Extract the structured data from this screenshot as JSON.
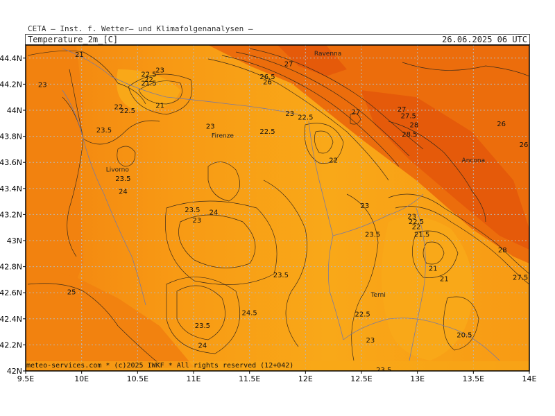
{
  "header": {
    "title": "CETA — Inst. f. Wetter— und Klimafolgenanalysen —",
    "parameter": "Temperature_2m_[C]",
    "datetime": "26.06.2025 06 UTC"
  },
  "footer": "meteo-services.com * (c)2025 IWKF * All rights reserved (12+042)",
  "colors": {
    "lightest": "#f9a818",
    "light": "#f89a14",
    "mid": "#f2820f",
    "dark": "#ec6d0c",
    "darkest": "#e55a0a",
    "contour": "#3a2a1a",
    "border": "#7a7aa0",
    "grid": "#b8b8b8"
  },
  "map": {
    "lon_range": [
      9.5,
      14.0
    ],
    "lat_range": [
      42.0,
      44.5
    ],
    "x_ticks": [
      "9.5E",
      "10E",
      "10.5E",
      "11E",
      "11.5E",
      "12E",
      "12.5E",
      "13E",
      "13.5E",
      "14E"
    ],
    "y_ticks": [
      "44.4N",
      "44.2N",
      "44N",
      "43.8N",
      "43.6N",
      "43.4N",
      "43.2N",
      "43N",
      "42.8N",
      "42.6N",
      "42.4N",
      "42.2N",
      "42N"
    ],
    "cities": [
      {
        "name": "Ravenna",
        "lon": 12.2,
        "lat": 44.42
      },
      {
        "name": "Firenze",
        "lon": 11.26,
        "lat": 43.79
      },
      {
        "name": "Livorno",
        "lon": 10.32,
        "lat": 43.53
      },
      {
        "name": "Ancona",
        "lon": 13.5,
        "lat": 43.6
      },
      {
        "name": "Terni",
        "lon": 12.65,
        "lat": 42.57
      }
    ],
    "contour_labels": [
      {
        "t": "21",
        "lon": 9.98,
        "lat": 44.43
      },
      {
        "t": "23",
        "lon": 9.65,
        "lat": 44.2
      },
      {
        "t": "23",
        "lon": 10.7,
        "lat": 44.31
      },
      {
        "t": "22.5",
        "lon": 10.6,
        "lat": 44.28
      },
      {
        "t": "22",
        "lon": 10.6,
        "lat": 44.24
      },
      {
        "t": "21.5",
        "lon": 10.6,
        "lat": 44.21
      },
      {
        "t": "21",
        "lon": 10.7,
        "lat": 44.04
      },
      {
        "t": "22",
        "lon": 10.33,
        "lat": 44.03
      },
      {
        "t": "22.5",
        "lon": 10.41,
        "lat": 44.0
      },
      {
        "t": "23.5",
        "lon": 10.2,
        "lat": 43.85
      },
      {
        "t": "23",
        "lon": 11.15,
        "lat": 43.88
      },
      {
        "t": "27",
        "lon": 11.85,
        "lat": 44.36
      },
      {
        "t": "26.5",
        "lon": 11.66,
        "lat": 44.26
      },
      {
        "t": "26",
        "lon": 11.66,
        "lat": 44.22
      },
      {
        "t": "23",
        "lon": 11.86,
        "lat": 43.98
      },
      {
        "t": "22.5",
        "lon": 12.0,
        "lat": 43.95
      },
      {
        "t": "22.5",
        "lon": 11.66,
        "lat": 43.84
      },
      {
        "t": "27",
        "lon": 12.45,
        "lat": 43.99
      },
      {
        "t": "27",
        "lon": 12.86,
        "lat": 44.01
      },
      {
        "t": "27.5",
        "lon": 12.92,
        "lat": 43.96
      },
      {
        "t": "28",
        "lon": 12.97,
        "lat": 43.89
      },
      {
        "t": "28.5",
        "lon": 12.93,
        "lat": 43.82
      },
      {
        "t": "26",
        "lon": 13.75,
        "lat": 43.9
      },
      {
        "t": "26.5",
        "lon": 13.98,
        "lat": 43.74
      },
      {
        "t": "22",
        "lon": 12.25,
        "lat": 43.62
      },
      {
        "t": "23.5",
        "lon": 10.37,
        "lat": 43.48
      },
      {
        "t": "24",
        "lon": 10.37,
        "lat": 43.38
      },
      {
        "t": "23.5",
        "lon": 10.99,
        "lat": 43.24
      },
      {
        "t": "24",
        "lon": 11.18,
        "lat": 43.22
      },
      {
        "t": "23",
        "lon": 11.03,
        "lat": 43.16
      },
      {
        "t": "23",
        "lon": 12.53,
        "lat": 43.27
      },
      {
        "t": "23.5",
        "lon": 12.6,
        "lat": 43.05
      },
      {
        "t": "23",
        "lon": 12.95,
        "lat": 43.19
      },
      {
        "t": "22.5",
        "lon": 12.99,
        "lat": 43.15
      },
      {
        "t": "22",
        "lon": 12.99,
        "lat": 43.11
      },
      {
        "t": "21.5",
        "lon": 13.04,
        "lat": 43.05
      },
      {
        "t": "21",
        "lon": 13.14,
        "lat": 42.79
      },
      {
        "t": "21",
        "lon": 13.24,
        "lat": 42.71
      },
      {
        "t": "28",
        "lon": 13.76,
        "lat": 42.93
      },
      {
        "t": "27.5",
        "lon": 13.92,
        "lat": 42.72
      },
      {
        "t": "25",
        "lon": 9.91,
        "lat": 42.61
      },
      {
        "t": "23.5",
        "lon": 11.78,
        "lat": 42.74
      },
      {
        "t": "24.5",
        "lon": 11.5,
        "lat": 42.45
      },
      {
        "t": "22.5",
        "lon": 12.51,
        "lat": 42.44
      },
      {
        "t": "23.5",
        "lon": 11.08,
        "lat": 42.35
      },
      {
        "t": "24",
        "lon": 11.08,
        "lat": 42.2
      },
      {
        "t": "23",
        "lon": 12.58,
        "lat": 42.24
      },
      {
        "t": "20.5",
        "lon": 13.42,
        "lat": 42.28
      },
      {
        "t": "23.5",
        "lon": 12.7,
        "lat": 42.01
      }
    ]
  }
}
